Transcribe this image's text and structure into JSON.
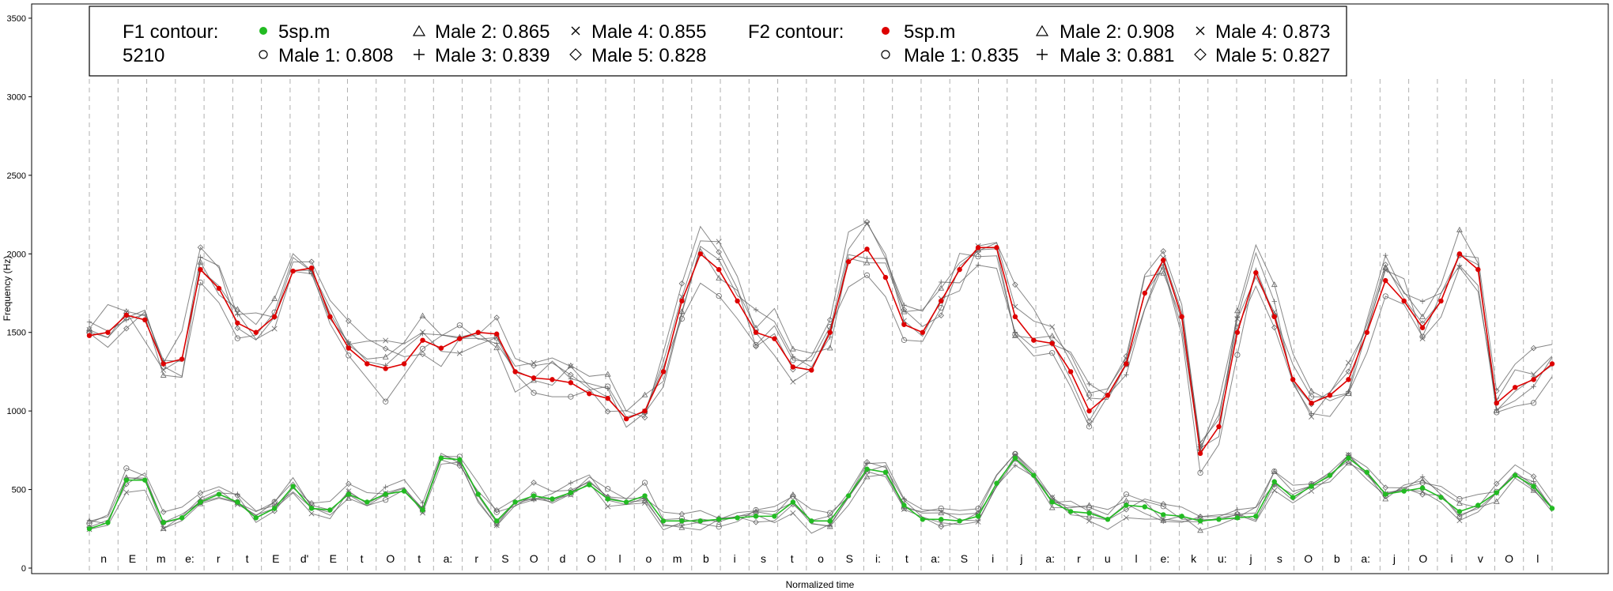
{
  "chart_data": {
    "type": "line",
    "xlabel": "Normalized time",
    "ylabel": "Frequency (Hz)",
    "ylim": [
      0,
      3500
    ],
    "yticks": [
      0,
      500,
      1000,
      1500,
      2000,
      2500,
      3000,
      3500
    ],
    "grid": "vertical dashed phone boundaries",
    "legend_placement": "top-left",
    "colors": {
      "f1_5sp": "#22bb22",
      "f2_5sp": "#dd0000",
      "speakers": "#555555"
    },
    "phones": [
      "n",
      "E",
      "m",
      "e:",
      "r",
      "t",
      "E",
      "d'",
      "E",
      "t",
      "O",
      "t",
      "a:",
      "r",
      "S",
      "O",
      "d",
      "O",
      "l",
      "o",
      "m",
      "b",
      "i",
      "s",
      "t",
      "o",
      "S",
      "i:",
      "t",
      "a:",
      "S",
      "i",
      "j",
      "a:",
      "r",
      "u",
      "l",
      "e:",
      "k",
      "u:",
      "j",
      "s",
      "O",
      "b",
      "a:",
      "j",
      "O",
      "i",
      "v",
      "O",
      "l"
    ],
    "f1_contour": {
      "legend_title": "F1 contour:",
      "legend_title2": "5210",
      "series": [
        {
          "name": "5sp.m",
          "marker": "filled-dot"
        },
        {
          "name": "Male 1: 0.808",
          "marker": "circle"
        },
        {
          "name": "Male 2: 0.865",
          "marker": "triangle"
        },
        {
          "name": "Male 3: 0.839",
          "marker": "plus"
        },
        {
          "name": "Male 4: 0.855",
          "marker": "cross"
        },
        {
          "name": "Male 5: 0.828",
          "marker": "diamond"
        }
      ],
      "main_values": [
        250,
        290,
        560,
        560,
        290,
        320,
        420,
        470,
        420,
        320,
        380,
        520,
        380,
        370,
        470,
        420,
        470,
        490,
        370,
        700,
        690,
        470,
        300,
        420,
        460,
        440,
        480,
        530,
        440,
        420,
        460,
        300,
        300,
        300,
        310,
        320,
        330,
        330,
        420,
        300,
        300,
        460,
        630,
        610,
        400,
        310,
        310,
        300,
        330,
        540,
        700,
        590,
        420,
        360,
        350,
        310,
        400,
        390,
        340,
        330,
        300,
        310,
        320,
        330,
        550,
        450,
        520,
        590,
        700,
        610,
        470,
        490,
        510,
        450,
        360,
        400,
        480,
        590,
        520,
        380
      ]
    },
    "f2_contour": {
      "legend_title": "F2 contour:",
      "series": [
        {
          "name": "5sp.m",
          "marker": "filled-dot"
        },
        {
          "name": "Male 1: 0.835",
          "marker": "circle"
        },
        {
          "name": "Male 2: 0.908",
          "marker": "triangle"
        },
        {
          "name": "Male 3: 0.881",
          "marker": "plus"
        },
        {
          "name": "Male 4: 0.873",
          "marker": "cross"
        },
        {
          "name": "Male 5: 0.827",
          "marker": "diamond"
        }
      ],
      "main_values": [
        1480,
        1500,
        1610,
        1580,
        1300,
        1330,
        1900,
        1780,
        1560,
        1500,
        1600,
        1890,
        1910,
        1600,
        1400,
        1300,
        1270,
        1300,
        1450,
        1400,
        1460,
        1500,
        1490,
        1250,
        1210,
        1200,
        1180,
        1110,
        1080,
        950,
        1000,
        1250,
        1700,
        2000,
        1900,
        1700,
        1500,
        1460,
        1280,
        1260,
        1500,
        1950,
        2030,
        1850,
        1550,
        1500,
        1700,
        1900,
        2040,
        2040,
        1600,
        1450,
        1430,
        1250,
        1000,
        1100,
        1300,
        1750,
        1960,
        1600,
        730,
        900,
        1500,
        1880,
        1600,
        1200,
        1050,
        1100,
        1200,
        1500,
        1830,
        1700,
        1530,
        1700,
        2000,
        1900,
        1050,
        1150,
        1200,
        1300
      ]
    }
  }
}
